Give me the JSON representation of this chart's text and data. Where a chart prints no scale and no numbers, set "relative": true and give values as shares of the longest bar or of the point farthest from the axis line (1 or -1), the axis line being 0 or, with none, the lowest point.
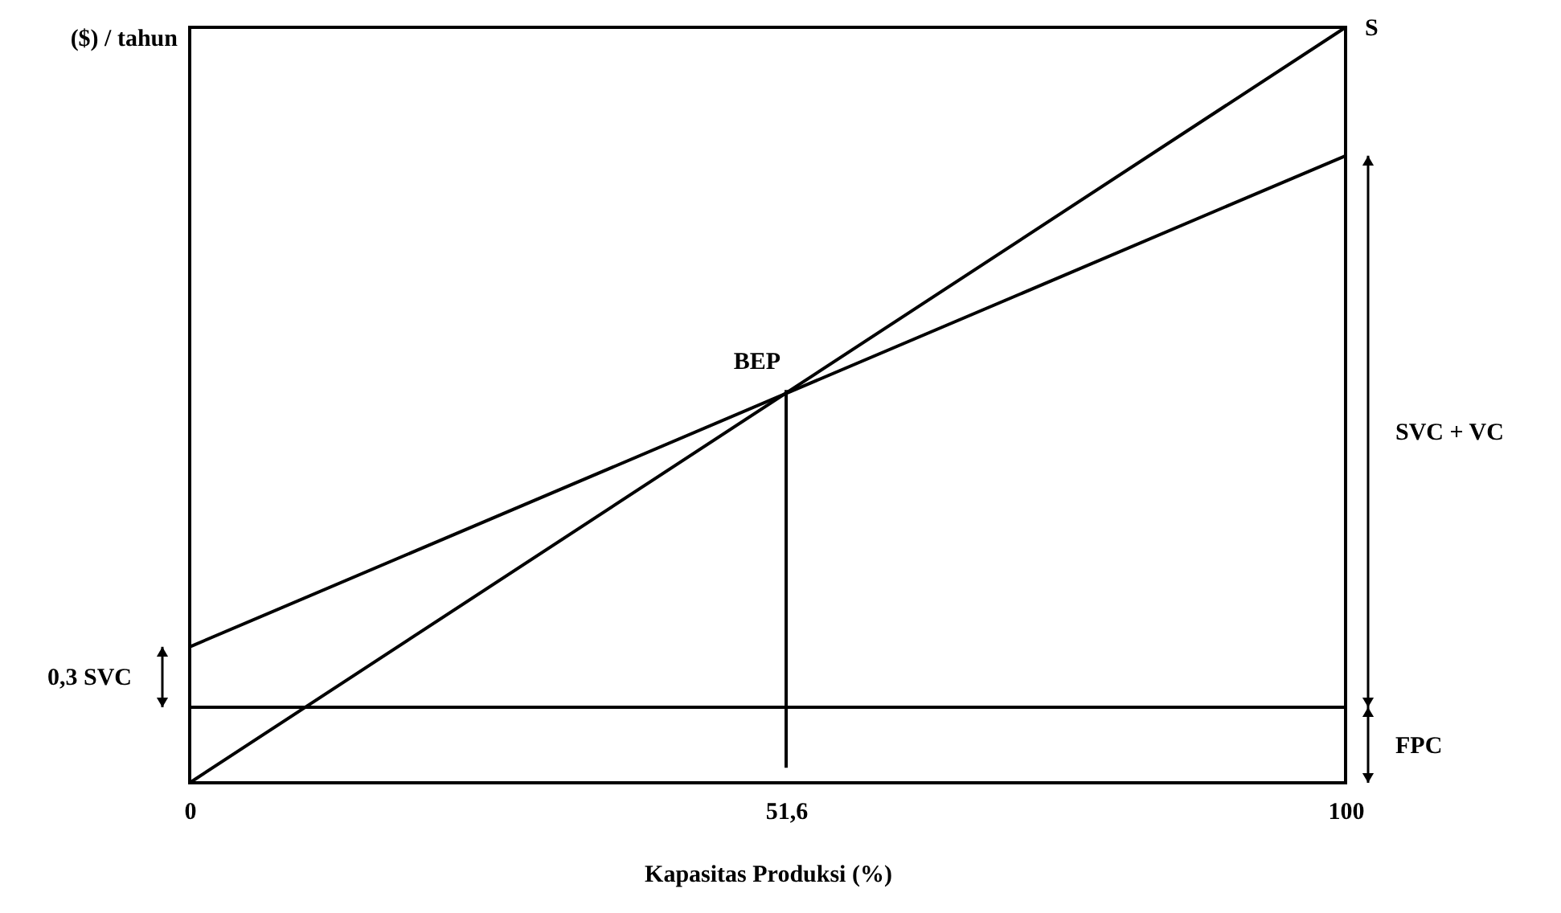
{
  "chart_data": {
    "type": "line",
    "relative": true,
    "xlabel": "Kapasitas Produksi (%)",
    "ylabel": "($) / tahun",
    "xlim": [
      0,
      100
    ],
    "xticks": [
      0,
      {
        "value": 51.6,
        "label": "51,6"
      },
      100
    ],
    "series": [
      {
        "name": "S",
        "color": "#000000",
        "x": [
          0,
          100
        ],
        "values": [
          0,
          1
        ]
      },
      {
        "color": "#000000",
        "x": [
          0,
          100
        ],
        "values": [
          0.18,
          0.83
        ]
      },
      {
        "color": "#000000",
        "x": [
          0,
          100
        ],
        "values": [
          0.1,
          0.1
        ]
      },
      {
        "color": "#000000",
        "x": [
          51.6,
          51.6
        ],
        "values": [
          0.02,
          0.52
        ]
      }
    ],
    "annotations": [
      {
        "text": "BEP",
        "x": 51.6,
        "y": 0.52
      },
      "SVC + VC",
      "FPC",
      "0,3 SVC"
    ]
  }
}
